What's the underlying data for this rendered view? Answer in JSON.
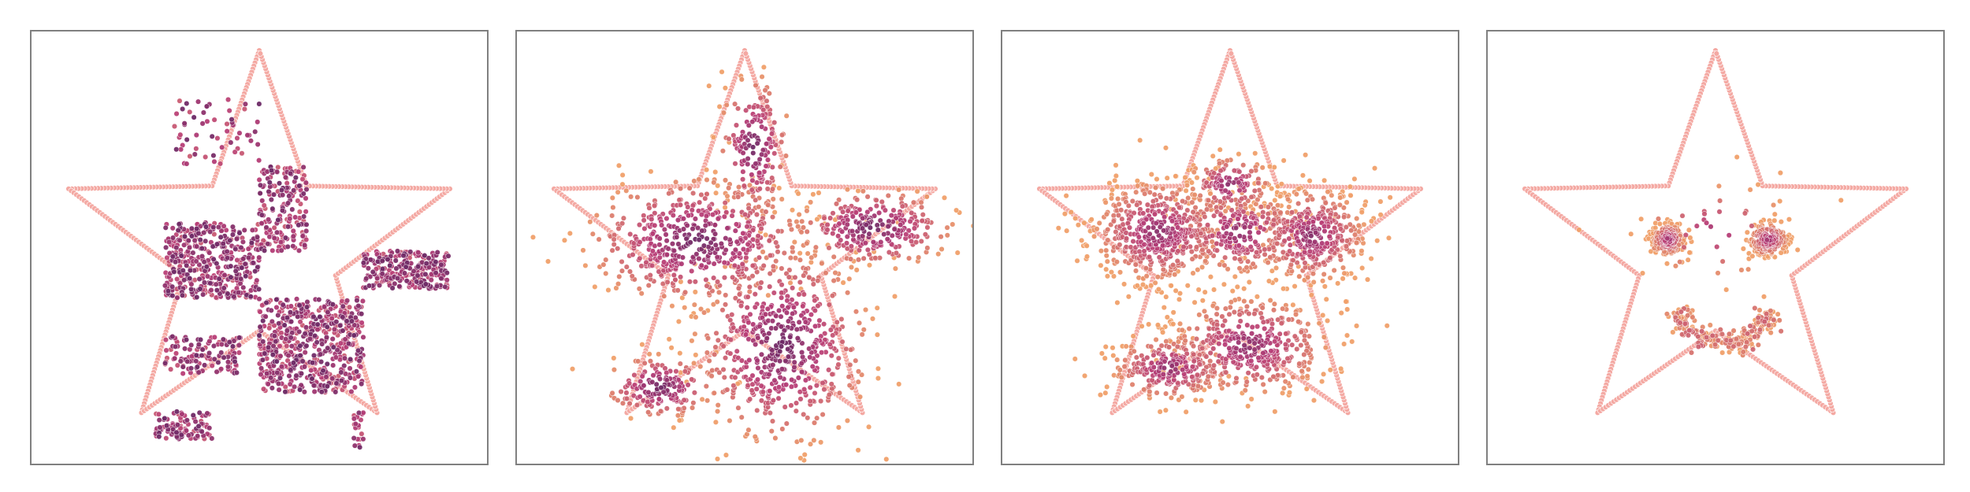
{
  "chart_data": [
    {
      "type": "scatter",
      "title": "",
      "xlabel": "",
      "ylabel": "",
      "grid": false,
      "ticks": "none",
      "xlim": [
        -1.2,
        1.2
      ],
      "ylim": [
        -1.2,
        1.2
      ],
      "colors": {
        "boundary": "#f4a9a3",
        "colormap_low": "#3b1c5a",
        "colormap_mid": "#b83e77",
        "colormap_high": "#f0a06a"
      },
      "series": [
        {
          "role": "boundary",
          "shape": "star",
          "star_outer_radius": 1.06,
          "star_inner_ratio": 0.4,
          "stroke_points": 440
        },
        {
          "role": "samples",
          "density": 0.85,
          "clusters": [
            {
              "kind": "rect",
              "x": [
                -0.45,
                0.0
              ],
              "y": [
                0.8,
                0.45
              ],
              "n": 60
            },
            {
              "kind": "rect",
              "x": [
                -0.0,
                0.25
              ],
              "y": [
                0.45,
                0.0
              ],
              "n": 180
            },
            {
              "kind": "rect",
              "x": [
                -0.5,
                0.0
              ],
              "y": [
                0.15,
                -0.25
              ],
              "n": 420
            },
            {
              "kind": "rect",
              "x": [
                0.0,
                0.55
              ],
              "y": [
                -0.25,
                -0.75
              ],
              "n": 560
            },
            {
              "kind": "rect",
              "x": [
                0.55,
                1.0
              ],
              "y": [
                0.0,
                -0.2
              ],
              "n": 260
            },
            {
              "kind": "rect",
              "x": [
                -0.5,
                -0.1
              ],
              "y": [
                -0.45,
                -0.65
              ],
              "n": 120
            },
            {
              "kind": "rect",
              "x": [
                -0.55,
                -0.25
              ],
              "y": [
                -0.85,
                -1.0
              ],
              "n": 100
            },
            {
              "kind": "rect",
              "x": [
                0.5,
                0.55
              ],
              "y": [
                -0.85,
                -1.05
              ],
              "n": 20
            }
          ]
        }
      ]
    },
    {
      "type": "scatter",
      "title": "",
      "xlabel": "",
      "ylabel": "",
      "grid": false,
      "ticks": "none",
      "xlim": [
        -1.2,
        1.2
      ],
      "ylim": [
        -1.2,
        1.2
      ],
      "colors": {
        "boundary": "#f4a9a3",
        "colormap_low": "#3b1c5a",
        "colormap_mid": "#b83e77",
        "colormap_high": "#f0a06a"
      },
      "series": [
        {
          "role": "boundary",
          "shape": "star",
          "star_outer_radius": 1.06,
          "star_inner_ratio": 0.4,
          "stroke_points": 440
        },
        {
          "role": "samples",
          "density": 0.6,
          "clusters": [
            {
              "kind": "blob",
              "x": 0.05,
              "y": 0.55,
              "sx": 0.09,
              "sy": 0.18,
              "n": 170
            },
            {
              "kind": "blob",
              "x": -0.25,
              "y": 0.05,
              "sx": 0.28,
              "sy": 0.16,
              "n": 520
            },
            {
              "kind": "blob",
              "x": 0.2,
              "y": -0.5,
              "sx": 0.22,
              "sy": 0.25,
              "n": 560
            },
            {
              "kind": "blob",
              "x": 0.68,
              "y": 0.12,
              "sx": 0.2,
              "sy": 0.1,
              "n": 260
            },
            {
              "kind": "blob",
              "x": -0.45,
              "y": -0.72,
              "sx": 0.14,
              "sy": 0.08,
              "n": 160
            }
          ]
        }
      ]
    },
    {
      "type": "scatter",
      "title": "",
      "xlabel": "",
      "ylabel": "",
      "grid": false,
      "ticks": "none",
      "xlim": [
        -1.2,
        1.2
      ],
      "ylim": [
        -1.2,
        1.2
      ],
      "colors": {
        "boundary": "#f4a9a3",
        "colormap_low": "#3b1c5a",
        "colormap_mid": "#b83e77",
        "colormap_high": "#f0a06a"
      },
      "series": [
        {
          "role": "boundary",
          "shape": "star",
          "star_outer_radius": 1.06,
          "star_inner_ratio": 0.4,
          "stroke_points": 440
        },
        {
          "role": "samples",
          "density": 0.35,
          "clusters": [
            {
              "kind": "blob",
              "x": -0.38,
              "y": 0.1,
              "sx": 0.18,
              "sy": 0.14,
              "n": 480
            },
            {
              "kind": "blob",
              "x": 0.43,
              "y": 0.08,
              "sx": 0.15,
              "sy": 0.13,
              "n": 380
            },
            {
              "kind": "blob",
              "x": 0.1,
              "y": -0.5,
              "sx": 0.22,
              "sy": 0.14,
              "n": 420
            },
            {
              "kind": "blob",
              "x": -0.32,
              "y": -0.62,
              "sx": 0.16,
              "sy": 0.09,
              "n": 240
            },
            {
              "kind": "blob",
              "x": 0.05,
              "y": 0.1,
              "sx": 0.18,
              "sy": 0.12,
              "n": 260
            },
            {
              "kind": "blob",
              "x": 0.0,
              "y": 0.35,
              "sx": 0.12,
              "sy": 0.08,
              "n": 140
            }
          ]
        }
      ]
    },
    {
      "type": "scatter",
      "title": "",
      "xlabel": "",
      "ylabel": "",
      "grid": false,
      "ticks": "none",
      "xlim": [
        -1.2,
        1.2
      ],
      "ylim": [
        -1.2,
        1.2
      ],
      "colors": {
        "boundary": "#f4a9a3",
        "colormap_low": "#3b1c5a",
        "colormap_mid": "#b83e77",
        "colormap_high": "#f0a06a"
      },
      "series": [
        {
          "role": "boundary",
          "shape": "star",
          "star_outer_radius": 1.06,
          "star_inner_ratio": 0.4,
          "stroke_points": 440
        },
        {
          "role": "samples",
          "density": 0.15,
          "clusters": [
            {
              "kind": "blob",
              "x": -0.25,
              "y": 0.06,
              "sx": 0.05,
              "sy": 0.05,
              "n": 170
            },
            {
              "kind": "blob",
              "x": 0.28,
              "y": 0.06,
              "sx": 0.06,
              "sy": 0.05,
              "n": 190
            },
            {
              "kind": "arc",
              "x": 0.04,
              "y": -0.22,
              "r": 0.27,
              "from": 200,
              "to": 340,
              "spread": 0.035,
              "n": 220
            },
            {
              "kind": "blob",
              "x": 0.0,
              "y": 0.1,
              "sx": 0.25,
              "sy": 0.15,
              "n": 40
            }
          ]
        }
      ]
    }
  ]
}
